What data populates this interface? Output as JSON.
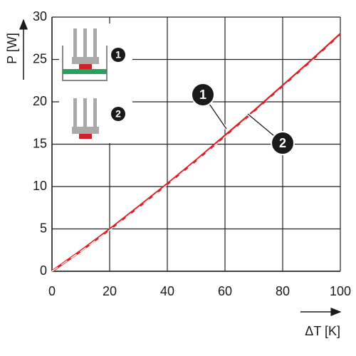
{
  "chart_data": {
    "type": "line",
    "y_label": "P [W]",
    "x_label": "ΔT [K]",
    "x": [
      0,
      10,
      20,
      30,
      40,
      50,
      60,
      70,
      80,
      90,
      100
    ],
    "series": [
      {
        "name": "1",
        "color": "#dd1f26",
        "style": "solid",
        "values": [
          0,
          2.4,
          4.95,
          7.6,
          10.3,
          13.1,
          16.0,
          18.9,
          21.9,
          24.9,
          28.0
        ]
      },
      {
        "name": "2",
        "color": "#dd1f26",
        "style": "dashed",
        "values": [
          0,
          2.35,
          4.85,
          7.5,
          10.2,
          13.0,
          15.85,
          18.75,
          21.75,
          24.75,
          27.85
        ]
      }
    ],
    "xlim": [
      0,
      100
    ],
    "ylim": [
      0,
      30
    ],
    "xticks": [
      0,
      20,
      40,
      60,
      80,
      100
    ],
    "yticks": [
      0,
      5,
      10,
      15,
      20,
      25,
      30
    ],
    "grid": true
  }
}
